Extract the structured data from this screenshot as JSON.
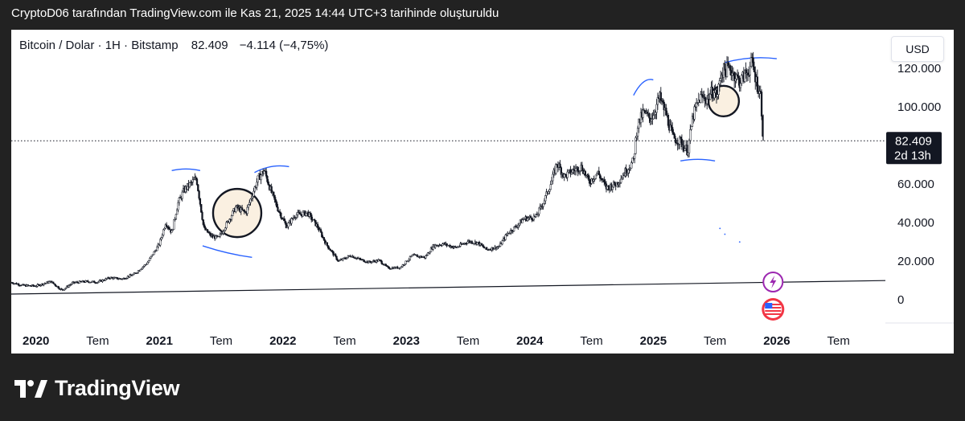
{
  "caption": "CryptoD06 tarafından TradingView.com ile Kas 21, 2025 14:44 UTC+3 tarihinde oluşturuldu",
  "legend": {
    "symbol": "Bitcoin / Dolar · 1H · Bitstamp",
    "last": "82.409",
    "change": "−4.114 (−4,75%)"
  },
  "currency": "USD",
  "price_label": {
    "value": "82.409",
    "countdown": "2d 13h"
  },
  "brand": {
    "name": "TradingView"
  },
  "colors": {
    "candle": "#131722",
    "trend_line": "#131722",
    "arc": "#2962ff",
    "circle": "#131722",
    "circle_fill": "#f6e3c8",
    "lightning": "#9c27b0",
    "us_flag": "#f23645"
  },
  "icons": [
    "lightning-icon",
    "us-flag-icon",
    "tradingview-logo-icon"
  ],
  "chart_data": {
    "type": "candlestick",
    "title": "",
    "y_ticks": [
      "120.000",
      "100.000",
      "60.000",
      "40.000",
      "20.000",
      "0"
    ],
    "y_tick_values": [
      120000,
      100000,
      60000,
      40000,
      20000,
      0
    ],
    "ylim": [
      -12000,
      140000
    ],
    "x_ticks": [
      "2020",
      "Tem",
      "2021",
      "Tem",
      "2022",
      "Tem",
      "2023",
      "Tem",
      "2024",
      "Tem",
      "2025",
      "Tem",
      "2026",
      "Tem"
    ],
    "x_tick_values": [
      2020.0,
      2020.5,
      2021.0,
      2021.5,
      2022.0,
      2022.5,
      2023.0,
      2023.5,
      2024.0,
      2024.5,
      2025.0,
      2025.5,
      2026.0,
      2026.5
    ],
    "xlim": [
      2019.8,
      2026.88
    ],
    "last_price": 82409,
    "series": [
      {
        "values": [
          [
            2019.8,
            9000
          ],
          [
            2019.9,
            7400
          ],
          [
            2020.0,
            7200
          ],
          [
            2020.12,
            9500
          ],
          [
            2020.21,
            5000
          ],
          [
            2020.3,
            8800
          ],
          [
            2020.4,
            9500
          ],
          [
            2020.5,
            9200
          ],
          [
            2020.6,
            11500
          ],
          [
            2020.7,
            10800
          ],
          [
            2020.8,
            13500
          ],
          [
            2020.9,
            19000
          ],
          [
            2021.0,
            29000
          ],
          [
            2021.05,
            40000
          ],
          [
            2021.1,
            35000
          ],
          [
            2021.15,
            50000
          ],
          [
            2021.2,
            57000
          ],
          [
            2021.25,
            60000
          ],
          [
            2021.3,
            63000
          ],
          [
            2021.36,
            37000
          ],
          [
            2021.42,
            33000
          ],
          [
            2021.48,
            32000
          ],
          [
            2021.55,
            40000
          ],
          [
            2021.62,
            48000
          ],
          [
            2021.7,
            45000
          ],
          [
            2021.76,
            56000
          ],
          [
            2021.8,
            63000
          ],
          [
            2021.85,
            67000
          ],
          [
            2021.9,
            57000
          ],
          [
            2021.96,
            47000
          ],
          [
            2022.03,
            38000
          ],
          [
            2022.1,
            44000
          ],
          [
            2022.2,
            45000
          ],
          [
            2022.28,
            38000
          ],
          [
            2022.35,
            29000
          ],
          [
            2022.45,
            20000
          ],
          [
            2022.55,
            23000
          ],
          [
            2022.62,
            21000
          ],
          [
            2022.7,
            19500
          ],
          [
            2022.78,
            20500
          ],
          [
            2022.85,
            16500
          ],
          [
            2022.95,
            16700
          ],
          [
            2023.05,
            23000
          ],
          [
            2023.15,
            22000
          ],
          [
            2023.22,
            28000
          ],
          [
            2023.3,
            29000
          ],
          [
            2023.4,
            27000
          ],
          [
            2023.5,
            30300
          ],
          [
            2023.58,
            29500
          ],
          [
            2023.65,
            26000
          ],
          [
            2023.75,
            27500
          ],
          [
            2023.82,
            34500
          ],
          [
            2023.88,
            37500
          ],
          [
            2023.95,
            42000
          ],
          [
            2024.05,
            43000
          ],
          [
            2024.12,
            52000
          ],
          [
            2024.18,
            62000
          ],
          [
            2024.22,
            71000
          ],
          [
            2024.28,
            64000
          ],
          [
            2024.35,
            67000
          ],
          [
            2024.42,
            69000
          ],
          [
            2024.48,
            61000
          ],
          [
            2024.55,
            66000
          ],
          [
            2024.62,
            58000
          ],
          [
            2024.7,
            60000
          ],
          [
            2024.78,
            67000
          ],
          [
            2024.84,
            72000
          ],
          [
            2024.87,
            90000
          ],
          [
            2024.92,
            97000
          ],
          [
            2024.97,
            94000
          ],
          [
            2025.0,
            96000
          ],
          [
            2025.05,
            105000
          ],
          [
            2025.1,
            97000
          ],
          [
            2025.16,
            84000
          ],
          [
            2025.22,
            82000
          ],
          [
            2025.28,
            77000
          ],
          [
            2025.32,
            95000
          ],
          [
            2025.38,
            105000
          ],
          [
            2025.43,
            104000
          ],
          [
            2025.48,
            108000
          ],
          [
            2025.52,
            106000
          ],
          [
            2025.55,
            118000
          ],
          [
            2025.62,
            120000
          ],
          [
            2025.7,
            113000
          ],
          [
            2025.76,
            118000
          ],
          [
            2025.8,
            123000
          ],
          [
            2025.84,
            112000
          ],
          [
            2025.87,
            106000
          ],
          [
            2025.88,
            95000
          ],
          [
            2025.89,
            82409
          ]
        ]
      }
    ],
    "annotations": {
      "trend_line": [
        [
          2019.8,
          3000
        ],
        [
          2026.88,
          10000
        ]
      ],
      "arcs": [
        [
          2021.1,
          67000,
          2021.33,
          67000
        ],
        [
          2021.35,
          28000,
          2021.75,
          22000
        ],
        [
          2021.77,
          66000,
          2022.05,
          69000
        ],
        [
          2024.84,
          106000,
          2025.0,
          114000
        ],
        [
          2025.22,
          72000,
          2025.5,
          72000
        ],
        [
          2025.58,
          123000,
          2026.0,
          125000
        ]
      ],
      "circles": [
        [
          2021.63,
          45000,
          30,
          "#f6e3c8"
        ],
        [
          2025.57,
          103000,
          19,
          "#f6e3c8"
        ]
      ],
      "dots": [
        [
          2025.58,
          34000
        ],
        [
          2025.54,
          37000
        ],
        [
          2025.7,
          30000
        ]
      ]
    }
  }
}
